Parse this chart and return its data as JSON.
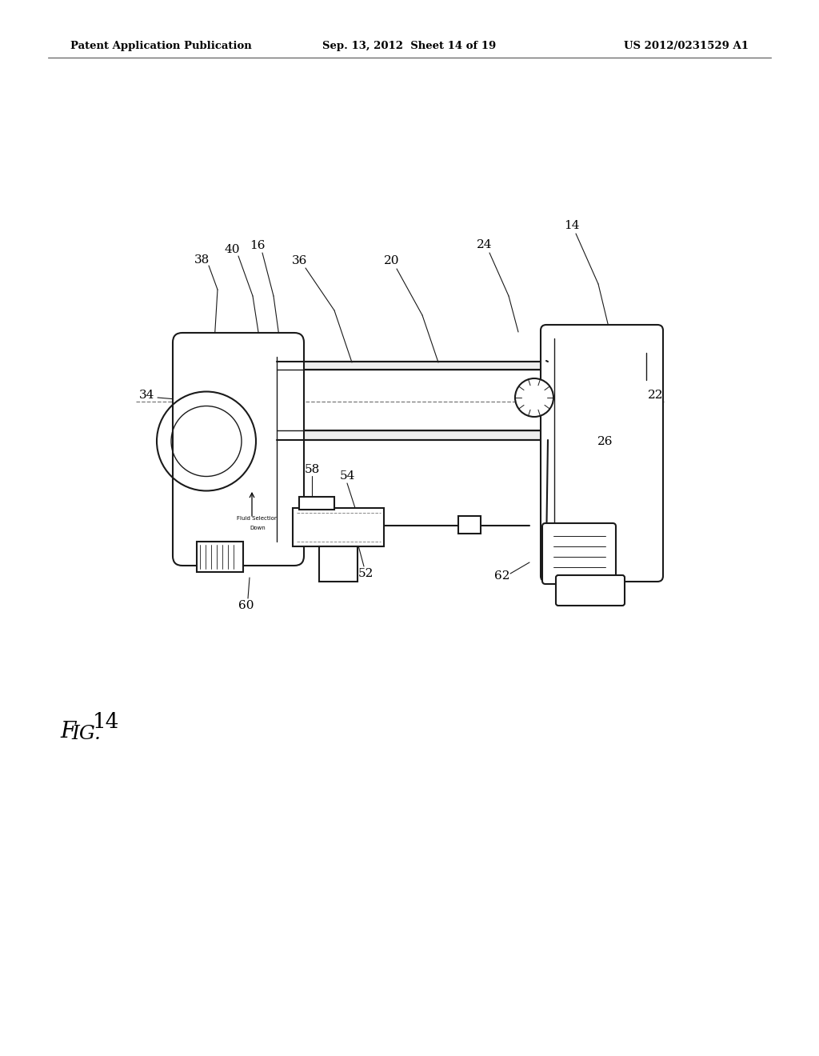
{
  "background_color": "#ffffff",
  "header_left": "Patent Application Publication",
  "header_mid": "Sep. 13, 2012  Sheet 14 of 19",
  "header_right": "US 2012/0231529 A1",
  "line_color": "#1a1a1a",
  "text_color": "#000000"
}
